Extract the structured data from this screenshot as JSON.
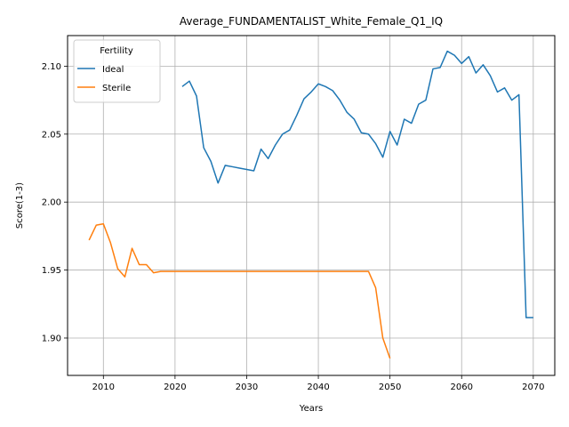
{
  "chart_data": {
    "type": "line",
    "title": "Average_FUNDAMENTALIST_White_Female_Q1_IQ",
    "xlabel": "Years",
    "ylabel": "Score(1-3)",
    "xlim": [
      2005,
      2073
    ],
    "ylim": [
      1.8725,
      2.1225
    ],
    "xticks": [
      2010,
      2020,
      2030,
      2040,
      2050,
      2060,
      2070
    ],
    "yticks": [
      1.9,
      1.95,
      2.0,
      2.05,
      2.1
    ],
    "ytick_labels": [
      "1.90",
      "1.95",
      "2.00",
      "2.05",
      "2.10"
    ],
    "grid": true,
    "legend": {
      "title": "Fertility",
      "position": "top-left"
    },
    "series": [
      {
        "name": "Ideal",
        "color": "#1f77b4",
        "x": [
          2021,
          2022,
          2023,
          2024,
          2025,
          2026,
          2027,
          2028,
          2029,
          2030,
          2031,
          2032,
          2033,
          2034,
          2035,
          2036,
          2037,
          2038,
          2039,
          2040,
          2041,
          2042,
          2043,
          2044,
          2045,
          2046,
          2047,
          2048,
          2049,
          2050,
          2051,
          2052,
          2053,
          2054,
          2055,
          2056,
          2057,
          2058,
          2059,
          2060,
          2061,
          2062,
          2063,
          2064,
          2065,
          2066,
          2067,
          2068,
          2069,
          2070
        ],
        "y": [
          2.085,
          2.089,
          2.078,
          2.04,
          2.03,
          2.014,
          2.027,
          2.026,
          2.025,
          2.024,
          2.023,
          2.039,
          2.032,
          2.042,
          2.05,
          2.053,
          2.064,
          2.076,
          2.081,
          2.087,
          2.085,
          2.082,
          2.075,
          2.066,
          2.061,
          2.051,
          2.05,
          2.043,
          2.033,
          2.052,
          2.042,
          2.061,
          2.058,
          2.072,
          2.075,
          2.098,
          2.099,
          2.111,
          2.108,
          2.102,
          2.107,
          2.095,
          2.101,
          2.093,
          2.081,
          2.084,
          2.075,
          2.079,
          1.915,
          1.915
        ]
      },
      {
        "name": "Sterile",
        "color": "#ff7f0e",
        "x": [
          2008,
          2009,
          2010,
          2011,
          2012,
          2013,
          2014,
          2015,
          2016,
          2017,
          2018,
          2019,
          2020,
          2021,
          2022,
          2023,
          2024,
          2025,
          2026,
          2027,
          2028,
          2029,
          2030,
          2031,
          2032,
          2033,
          2034,
          2035,
          2036,
          2037,
          2038,
          2039,
          2040,
          2041,
          2042,
          2043,
          2044,
          2045,
          2046,
          2047,
          2048,
          2049,
          2050
        ],
        "y": [
          1.972,
          1.983,
          1.984,
          1.97,
          1.951,
          1.945,
          1.966,
          1.954,
          1.954,
          1.948,
          1.949,
          1.949,
          1.949,
          1.949,
          1.949,
          1.949,
          1.949,
          1.949,
          1.949,
          1.949,
          1.949,
          1.949,
          1.949,
          1.949,
          1.949,
          1.949,
          1.949,
          1.949,
          1.949,
          1.949,
          1.949,
          1.949,
          1.949,
          1.949,
          1.949,
          1.949,
          1.949,
          1.949,
          1.949,
          1.949,
          1.937,
          1.9,
          1.885
        ]
      }
    ]
  }
}
